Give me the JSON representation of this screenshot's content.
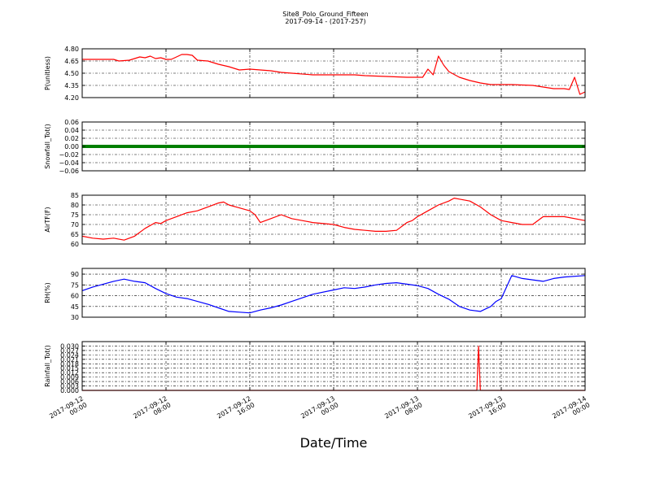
{
  "title": "Site8_Polo_Ground_Fifteen",
  "subtitle": "2017-09-14 - (2017-257)",
  "xlabel": "Date/Time",
  "x_ticks": [
    {
      "line1": "2017-09-12",
      "line2": "00:00"
    },
    {
      "line1": "2017-09-12",
      "line2": "08:00"
    },
    {
      "line1": "2017-09-12",
      "line2": "16:00"
    },
    {
      "line1": "2017-09-13",
      "line2": "00:00"
    },
    {
      "line1": "2017-09-13",
      "line2": "08:00"
    },
    {
      "line1": "2017-09-13",
      "line2": "16:00"
    },
    {
      "line1": "2017-09-14",
      "line2": "00:00"
    }
  ],
  "chart_data": [
    {
      "type": "line",
      "ylabel": "P(unitless)",
      "ylim": [
        4.2,
        4.8
      ],
      "yticks": [
        "4.20",
        "4.35",
        "4.50",
        "4.65",
        "4.80"
      ],
      "ytick_values": [
        4.2,
        4.35,
        4.5,
        4.65,
        4.8
      ],
      "xlim": [
        "2017-09-12 00:00",
        "2017-09-14 00:00"
      ],
      "grid": true,
      "series": [
        {
          "color": "#ff0000",
          "x": [
            "2017-09-12 00:00",
            "2017-09-12 01:00",
            "2017-09-12 03:00",
            "2017-09-12 03:30",
            "2017-09-12 04:30",
            "2017-09-12 05:00",
            "2017-09-12 05:30",
            "2017-09-12 06:00",
            "2017-09-12 06:30",
            "2017-09-12 07:00",
            "2017-09-12 07:30",
            "2017-09-12 08:00",
            "2017-09-12 08:30",
            "2017-09-12 09:00",
            "2017-09-12 09:30",
            "2017-09-12 10:00",
            "2017-09-12 10:30",
            "2017-09-12 11:00",
            "2017-09-12 12:00",
            "2017-09-12 13:00",
            "2017-09-12 14:00",
            "2017-09-12 15:00",
            "2017-09-12 16:00",
            "2017-09-12 17:00",
            "2017-09-12 18:00",
            "2017-09-12 19:00",
            "2017-09-12 20:00",
            "2017-09-12 22:00",
            "2017-09-13 00:00",
            "2017-09-13 02:00",
            "2017-09-13 03:00",
            "2017-09-13 05:00",
            "2017-09-13 07:00",
            "2017-09-13 08:30",
            "2017-09-13 09:00",
            "2017-09-13 09:30",
            "2017-09-13 10:00",
            "2017-09-13 10:30",
            "2017-09-13 11:00",
            "2017-09-13 12:00",
            "2017-09-13 13:00",
            "2017-09-13 14:00",
            "2017-09-13 15:00",
            "2017-09-13 17:00",
            "2017-09-13 19:00",
            "2017-09-13 20:00",
            "2017-09-13 21:00",
            "2017-09-13 22:00",
            "2017-09-13 22:30",
            "2017-09-13 23:00",
            "2017-09-13 23:30",
            "2017-09-14 00:00"
          ],
          "y": [
            4.67,
            4.67,
            4.67,
            4.65,
            4.66,
            4.68,
            4.7,
            4.69,
            4.71,
            4.68,
            4.69,
            4.67,
            4.67,
            4.7,
            4.73,
            4.73,
            4.72,
            4.66,
            4.65,
            4.61,
            4.58,
            4.54,
            4.55,
            4.54,
            4.53,
            4.51,
            4.5,
            4.48,
            4.48,
            4.48,
            4.47,
            4.46,
            4.45,
            4.45,
            4.55,
            4.48,
            4.71,
            4.6,
            4.52,
            4.45,
            4.41,
            4.38,
            4.36,
            4.36,
            4.35,
            4.33,
            4.31,
            4.31,
            4.3,
            4.45,
            4.24,
            4.27
          ]
        }
      ]
    },
    {
      "type": "line",
      "ylabel": "Snowfall_Tot()",
      "ylim": [
        -0.06,
        0.06
      ],
      "yticks": [
        "−0.06",
        "−0.04",
        "−0.02",
        "0.00",
        "0.02",
        "0.04",
        "0.06"
      ],
      "ytick_values": [
        -0.06,
        -0.04,
        -0.02,
        0.0,
        0.02,
        0.04,
        0.06
      ],
      "xlim": [
        "2017-09-12 00:00",
        "2017-09-14 00:00"
      ],
      "grid": true,
      "series": [
        {
          "color": "#007f00",
          "x": [
            "2017-09-12 00:00",
            "2017-09-14 00:00"
          ],
          "y": [
            0.0,
            0.0
          ]
        }
      ]
    },
    {
      "type": "line",
      "ylabel": "AirTF(F)",
      "ylim": [
        60,
        85
      ],
      "yticks": [
        "60",
        "65",
        "70",
        "75",
        "80",
        "85"
      ],
      "ytick_values": [
        60,
        65,
        70,
        75,
        80,
        85
      ],
      "xlim": [
        "2017-09-12 00:00",
        "2017-09-14 00:00"
      ],
      "grid": true,
      "series": [
        {
          "color": "#ff0000",
          "x": [
            "2017-09-12 00:00",
            "2017-09-12 01:00",
            "2017-09-12 02:00",
            "2017-09-12 03:00",
            "2017-09-12 04:00",
            "2017-09-12 05:00",
            "2017-09-12 06:00",
            "2017-09-12 07:00",
            "2017-09-12 07:30",
            "2017-09-12 08:00",
            "2017-09-12 09:00",
            "2017-09-12 10:00",
            "2017-09-12 11:00",
            "2017-09-12 12:00",
            "2017-09-12 13:00",
            "2017-09-12 13:30",
            "2017-09-12 14:00",
            "2017-09-12 15:00",
            "2017-09-12 16:00",
            "2017-09-12 16:30",
            "2017-09-12 17:00",
            "2017-09-12 18:00",
            "2017-09-12 19:00",
            "2017-09-12 20:00",
            "2017-09-12 21:00",
            "2017-09-12 22:00",
            "2017-09-13 00:00",
            "2017-09-13 01:00",
            "2017-09-13 02:00",
            "2017-09-13 03:00",
            "2017-09-13 04:00",
            "2017-09-13 05:00",
            "2017-09-13 06:00",
            "2017-09-13 07:00",
            "2017-09-13 07:30",
            "2017-09-13 08:00",
            "2017-09-13 09:00",
            "2017-09-13 10:00",
            "2017-09-13 11:00",
            "2017-09-13 11:30",
            "2017-09-13 12:00",
            "2017-09-13 13:00",
            "2017-09-13 14:00",
            "2017-09-13 15:00",
            "2017-09-13 16:00",
            "2017-09-13 17:00",
            "2017-09-13 18:00",
            "2017-09-13 19:00",
            "2017-09-13 20:00",
            "2017-09-13 22:00",
            "2017-09-14 00:00"
          ],
          "y": [
            64,
            63,
            62.5,
            63,
            62,
            64,
            68,
            71,
            70.5,
            72,
            74,
            76,
            77,
            79,
            81,
            81.5,
            80,
            78.5,
            77,
            75,
            71,
            73,
            75,
            73,
            72,
            71,
            70,
            68.5,
            67.5,
            67,
            66.5,
            66.5,
            67,
            71,
            72,
            74,
            77,
            80,
            82,
            83.5,
            83,
            82,
            79,
            75,
            72,
            71,
            70,
            70,
            74,
            74,
            72
          ]
        }
      ]
    },
    {
      "type": "line",
      "ylabel": "RH(%)",
      "ylim": [
        30,
        98
      ],
      "yticks": [
        "30",
        "45",
        "60",
        "75",
        "90"
      ],
      "ytick_values": [
        30,
        45,
        60,
        75,
        90
      ],
      "xlim": [
        "2017-09-12 00:00",
        "2017-09-14 00:00"
      ],
      "grid": true,
      "series": [
        {
          "color": "#0000ff",
          "x": [
            "2017-09-12 00:00",
            "2017-09-12 01:00",
            "2017-09-12 02:00",
            "2017-09-12 03:00",
            "2017-09-12 04:00",
            "2017-09-12 05:00",
            "2017-09-12 06:00",
            "2017-09-12 07:00",
            "2017-09-12 08:00",
            "2017-09-12 09:00",
            "2017-09-12 10:00",
            "2017-09-12 11:00",
            "2017-09-12 12:00",
            "2017-09-12 13:00",
            "2017-09-12 14:00",
            "2017-09-12 15:00",
            "2017-09-12 16:00",
            "2017-09-12 17:00",
            "2017-09-12 18:00",
            "2017-09-12 19:00",
            "2017-09-12 20:00",
            "2017-09-12 21:00",
            "2017-09-12 22:00",
            "2017-09-13 00:00",
            "2017-09-13 01:00",
            "2017-09-13 02:00",
            "2017-09-13 03:00",
            "2017-09-13 04:00",
            "2017-09-13 05:00",
            "2017-09-13 06:00",
            "2017-09-13 07:00",
            "2017-09-13 08:00",
            "2017-09-13 09:00",
            "2017-09-13 10:00",
            "2017-09-13 11:00",
            "2017-09-13 12:00",
            "2017-09-13 13:00",
            "2017-09-13 14:00",
            "2017-09-13 15:00",
            "2017-09-13 15:30",
            "2017-09-13 16:00",
            "2017-09-13 17:00",
            "2017-09-13 18:00",
            "2017-09-13 19:00",
            "2017-09-13 20:00",
            "2017-09-13 21:00",
            "2017-09-13 22:00",
            "2017-09-14 00:00"
          ],
          "y": [
            67,
            72,
            76,
            80,
            83,
            80,
            78,
            70,
            63,
            58,
            56,
            52,
            48,
            43,
            38,
            37,
            36,
            40,
            43,
            47,
            52,
            57,
            62,
            68,
            71,
            70,
            72,
            75,
            77,
            78,
            76,
            74,
            70,
            62,
            55,
            45,
            40,
            38,
            45,
            52,
            56,
            88,
            84,
            82,
            80,
            84,
            86,
            88
          ]
        }
      ]
    },
    {
      "type": "line",
      "ylabel": "Rainfall_Tot()",
      "ylim": [
        0.0,
        0.033
      ],
      "yticks": [
        "0.000",
        "0.003",
        "0.006",
        "0.009",
        "0.012",
        "0.015",
        "0.018",
        "0.021",
        "0.024",
        "0.027",
        "0.030"
      ],
      "ytick_values": [
        0.0,
        0.003,
        0.006,
        0.009,
        0.012,
        0.015,
        0.018,
        0.021,
        0.024,
        0.027,
        0.03
      ],
      "xlim": [
        "2017-09-12 00:00",
        "2017-09-14 00:00"
      ],
      "grid": true,
      "series": [
        {
          "color": "#ff0000",
          "x": [
            "2017-09-12 00:00",
            "2017-09-13 13:40",
            "2017-09-13 13:50",
            "2017-09-13 14:00",
            "2017-09-14 00:00"
          ],
          "y": [
            0.0,
            0.0,
            0.03,
            0.0,
            0.0
          ]
        }
      ]
    }
  ]
}
